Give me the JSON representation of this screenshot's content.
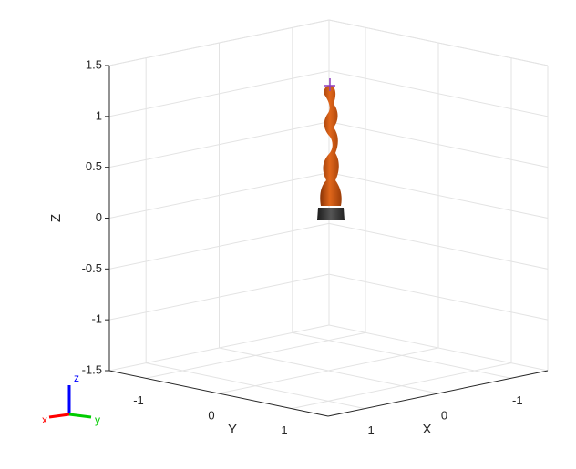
{
  "axes": {
    "x_label": "X",
    "y_label": "Y",
    "z_label": "Z",
    "x_lim": [
      -1.5,
      1.5
    ],
    "y_lim": [
      -1.5,
      1.5
    ],
    "z_lim": [
      -1.5,
      1.5
    ],
    "x_ticks": [
      -1,
      0,
      1
    ],
    "y_ticks": [
      -1,
      0,
      1
    ],
    "z_ticks": [
      -1.5,
      -1,
      -0.5,
      0,
      0.5,
      1,
      1.5
    ]
  },
  "triad": {
    "x": "x",
    "y": "y",
    "z": "z"
  }
}
